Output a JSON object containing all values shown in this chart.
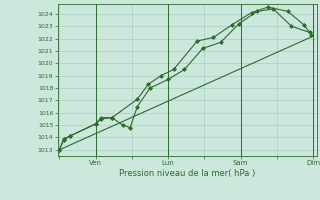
{
  "bg_color": "#cce8dc",
  "grid_color": "#a8cfc0",
  "line_color": "#2d6a2d",
  "marker_color": "#2d6a2d",
  "ylabel_ticks": [
    1013,
    1014,
    1015,
    1016,
    1017,
    1018,
    1019,
    1020,
    1021,
    1022,
    1023,
    1024
  ],
  "ylim": [
    1012.5,
    1024.8
  ],
  "xlabel": "Pression niveau de la mer( hPa )",
  "xtick_labels": [
    "",
    "Ven",
    "",
    "Lun",
    "",
    "Sam",
    "",
    "Dim"
  ],
  "xtick_positions": [
    0,
    1,
    2,
    3,
    4,
    5,
    6,
    7
  ],
  "series1_x": [
    0.0,
    0.12,
    0.28,
    1.0,
    1.15,
    1.45,
    1.75,
    1.95,
    2.15,
    2.5,
    3.0,
    3.45,
    3.95,
    4.45,
    4.95,
    5.45,
    5.9,
    6.4,
    6.9
  ],
  "series1_y": [
    1013.0,
    1013.8,
    1014.1,
    1015.1,
    1015.5,
    1015.6,
    1015.0,
    1014.8,
    1016.5,
    1018.0,
    1018.7,
    1019.5,
    1021.2,
    1021.7,
    1023.2,
    1024.2,
    1024.4,
    1023.0,
    1022.5
  ],
  "series2_x": [
    0.0,
    0.12,
    0.28,
    1.0,
    1.15,
    1.45,
    2.15,
    2.45,
    2.8,
    3.15,
    3.8,
    4.25,
    4.75,
    5.3,
    5.75,
    6.3,
    6.75,
    6.95
  ],
  "series2_y": [
    1013.0,
    1013.9,
    1014.1,
    1015.1,
    1015.6,
    1015.6,
    1017.1,
    1018.3,
    1019.0,
    1019.5,
    1021.8,
    1022.1,
    1023.1,
    1024.1,
    1024.55,
    1024.2,
    1023.1,
    1022.3
  ],
  "trend_x": [
    0.0,
    7.0
  ],
  "trend_y": [
    1013.0,
    1022.2
  ],
  "vlines": [
    1.0,
    3.0,
    5.0,
    7.0
  ]
}
